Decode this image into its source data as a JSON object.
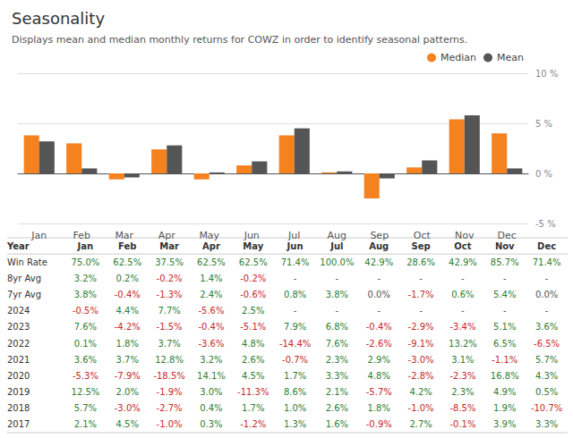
{
  "chart_data": {
    "type": "bar",
    "title": "Seasonality",
    "subtitle": "Displays mean and median monthly returns for COWZ in order to identify seasonal patterns.",
    "categories": [
      "Jan",
      "Feb",
      "Mar",
      "Apr",
      "May",
      "Jun",
      "Jul",
      "Aug",
      "Sep",
      "Oct",
      "Nov",
      "Dec"
    ],
    "series": [
      {
        "name": "Median",
        "color": "#F5811F",
        "values": [
          3.8,
          3.0,
          -0.6,
          2.4,
          -0.6,
          0.8,
          3.8,
          0.1,
          -2.5,
          0.6,
          5.4,
          4.0
        ]
      },
      {
        "name": "Mean",
        "color": "#555555",
        "values": [
          3.2,
          0.5,
          -0.4,
          2.8,
          0.1,
          1.2,
          4.5,
          0.2,
          -0.5,
          1.3,
          5.8,
          0.5
        ]
      }
    ],
    "ylim": [
      -5,
      10
    ],
    "yticks": [
      {
        "value": -5,
        "label": "-5 %"
      },
      {
        "value": 0,
        "label": "0 %"
      },
      {
        "value": 5,
        "label": "5 %"
      },
      {
        "value": 10,
        "label": "10 %"
      }
    ],
    "grid": true,
    "legend": "top right",
    "table": {
      "columns": [
        "Year",
        "Jan",
        "Feb",
        "Mar",
        "Apr",
        "May",
        "Jun",
        "Jul",
        "Aug",
        "Sep",
        "Oct",
        "Nov",
        "Dec"
      ],
      "rows": [
        {
          "label": "Win Rate",
          "values": [
            "75.0%",
            "62.5%",
            "37.5%",
            "62.5%",
            "62.5%",
            "71.4%",
            "100.0%",
            "42.9%",
            "28.6%",
            "42.9%",
            "85.7%",
            "71.4%"
          ]
        },
        {
          "label": "8yr Avg",
          "values": [
            "3.2%",
            "0.2%",
            "-0.2%",
            "1.4%",
            "-0.2%",
            "-",
            "-",
            "-",
            "-",
            "-",
            "-",
            "-"
          ]
        },
        {
          "label": "7yr Avg",
          "values": [
            "3.8%",
            "-0.4%",
            "-1.3%",
            "2.4%",
            "-0.6%",
            "0.8%",
            "3.8%",
            "0.0%",
            "-1.7%",
            "0.6%",
            "5.4%",
            "0.0%"
          ]
        },
        {
          "label": "2024",
          "values": [
            "-0.5%",
            "4.4%",
            "7.7%",
            "-5.6%",
            "2.5%",
            "-",
            "-",
            "-",
            "-",
            "-",
            "-",
            "-"
          ]
        },
        {
          "label": "2023",
          "values": [
            "7.6%",
            "-4.2%",
            "-1.5%",
            "-0.4%",
            "-5.1%",
            "7.9%",
            "6.8%",
            "-0.4%",
            "-2.9%",
            "-3.4%",
            "5.1%",
            "3.6%"
          ]
        },
        {
          "label": "2022",
          "values": [
            "0.1%",
            "1.8%",
            "3.7%",
            "-3.6%",
            "4.8%",
            "-14.4%",
            "7.6%",
            "-2.6%",
            "-9.1%",
            "13.2%",
            "6.5%",
            "-6.5%"
          ]
        },
        {
          "label": "2021",
          "values": [
            "3.6%",
            "3.7%",
            "12.8%",
            "3.2%",
            "2.6%",
            "-0.7%",
            "2.3%",
            "2.9%",
            "-3.0%",
            "3.1%",
            "-1.1%",
            "5.7%"
          ]
        },
        {
          "label": "2020",
          "values": [
            "-5.3%",
            "-7.9%",
            "-18.5%",
            "14.1%",
            "4.5%",
            "1.7%",
            "3.3%",
            "4.8%",
            "-2.8%",
            "-2.3%",
            "16.8%",
            "4.3%"
          ]
        },
        {
          "label": "2019",
          "values": [
            "12.5%",
            "2.0%",
            "-1.9%",
            "3.0%",
            "-11.3%",
            "8.6%",
            "2.1%",
            "-5.7%",
            "4.2%",
            "2.3%",
            "4.9%",
            "0.5%"
          ]
        },
        {
          "label": "2018",
          "values": [
            "5.7%",
            "-3.0%",
            "-2.7%",
            "0.4%",
            "1.7%",
            "1.0%",
            "2.6%",
            "1.8%",
            "-1.0%",
            "-8.5%",
            "1.9%",
            "-10.7%"
          ]
        },
        {
          "label": "2017",
          "values": [
            "2.1%",
            "4.5%",
            "-1.0%",
            "0.3%",
            "-1.2%",
            "1.3%",
            "1.6%",
            "-0.9%",
            "2.7%",
            "-0.1%",
            "3.9%",
            "3.3%"
          ]
        }
      ]
    }
  }
}
